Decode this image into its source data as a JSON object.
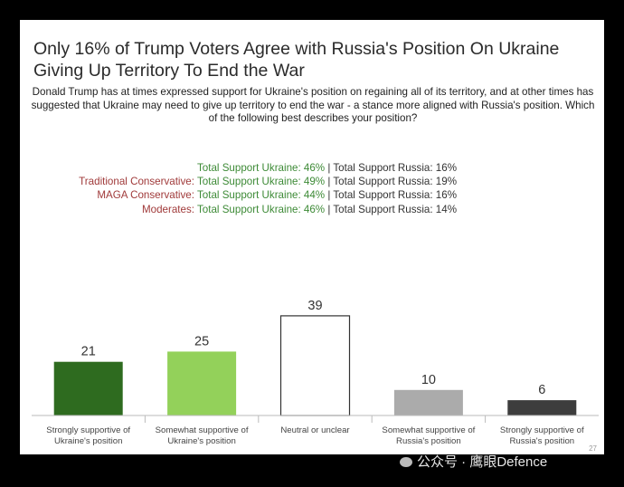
{
  "title": "Only 16% of Trump Voters Agree with Russia's Position On Ukraine Giving Up Territory To End the War",
  "description": "Donald Trump has at times expressed support for Ukraine's position on regaining all of its territory, and at other times has suggested that Ukraine may need to give up territory to end the war - a stance more aligned with Russia's position. Which of the following best describes your position?",
  "subgroups": [
    {
      "label": "",
      "ukraine": "Total Support Ukraine: 46%",
      "sep": " | ",
      "russia": "Total Support Russia: 16%"
    },
    {
      "label": "Traditional Conservative: ",
      "ukraine": "Total Support Ukraine: 49%",
      "sep": " | ",
      "russia": "Total Support Russia: 19%"
    },
    {
      "label": "MAGA Conservative: ",
      "ukraine": "Total Support Ukraine: 44%",
      "sep": " | ",
      "russia": "Total Support Russia: 16%"
    },
    {
      "label": "Moderates: ",
      "ukraine": "Total Support Ukraine: 46%",
      "sep": " | ",
      "russia": "Total Support Russia: 14%"
    }
  ],
  "chart_data": {
    "type": "bar",
    "title": "",
    "xlabel": "",
    "ylabel": "",
    "ylim": [
      0,
      45
    ],
    "grid": false,
    "categories": [
      [
        "Strongly supportive of",
        "Ukraine's position"
      ],
      [
        "Somewhat supportive of",
        "Ukraine's position"
      ],
      [
        "Neutral or unclear"
      ],
      [
        "Somewhat supportive of",
        "Russia's position"
      ],
      [
        "Strongly supportive of",
        "Russia's position"
      ]
    ],
    "values": [
      21,
      25,
      39,
      10,
      6
    ],
    "colors": [
      "#2e6b1f",
      "#93d15a",
      "#ffffff",
      "#ababab",
      "#3d3d3d"
    ]
  },
  "page_number": "27",
  "watermark": "公众号 · 鹰眼Defence"
}
